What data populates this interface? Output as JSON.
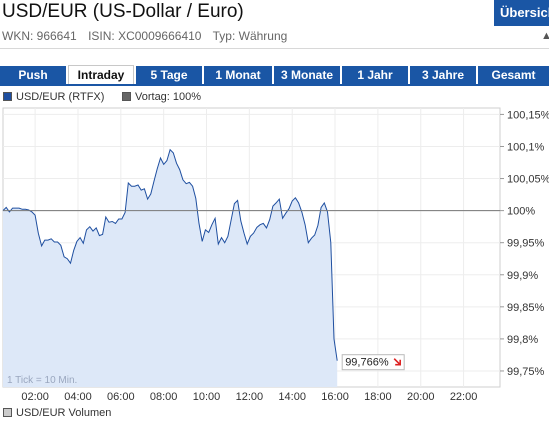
{
  "header": {
    "title": "USD/EUR (US-Dollar / Euro)",
    "overview_label": "Übersicht",
    "wkn": "WKN: 966641",
    "isin": "ISIN: XC0009666410",
    "typ": "Typ: Währung"
  },
  "tabs": [
    {
      "label": "Push",
      "active": false
    },
    {
      "label": "Intraday",
      "active": true
    },
    {
      "label": "5 Tage",
      "active": false
    },
    {
      "label": "1 Monat",
      "active": false
    },
    {
      "label": "3 Monate",
      "active": false
    },
    {
      "label": "1 Jahr",
      "active": false
    },
    {
      "label": "3 Jahre",
      "active": false
    },
    {
      "label": "Gesamt",
      "active": false
    }
  ],
  "legend": {
    "series_label": "USD/EUR (RTFX)",
    "prev_label": "Vortag: 100%",
    "volume_label": "USD/EUR Volumen",
    "tick_note": "1 Tick = 10 Min."
  },
  "colors": {
    "accent": "#1a56a5",
    "series_line": "#1f4fa0",
    "series_fill": "#dde8f8",
    "prev_swatch": "#666666",
    "volume_swatch": "#cccccc",
    "last_arrow": "#dd2222"
  },
  "chart_data": {
    "type": "area",
    "x_unit": "hour",
    "xlim": [
      0.5,
      23.7
    ],
    "ylim": [
      99.725,
      100.16
    ],
    "x_ticks": [
      "02:00",
      "04:00",
      "06:00",
      "08:00",
      "10:00",
      "12:00",
      "14:00",
      "16:00",
      "18:00",
      "20:00",
      "22:00"
    ],
    "y_ticks": [
      "100,15%",
      "100,1%",
      "100,05%",
      "100%",
      "99,95%",
      "99,9%",
      "99,85%",
      "99,8%",
      "99,75%"
    ],
    "reference_value": 100.0,
    "last_label": "99,766%",
    "last_direction": "down",
    "series": [
      {
        "name": "USD/EUR (RTFX)",
        "x": [
          0.5,
          0.65,
          0.8,
          0.95,
          1.1,
          1.25,
          1.4,
          1.55,
          1.7,
          1.85,
          2.0,
          2.15,
          2.3,
          2.45,
          2.6,
          2.75,
          2.9,
          3.05,
          3.2,
          3.35,
          3.5,
          3.65,
          3.8,
          3.95,
          4.1,
          4.25,
          4.4,
          4.55,
          4.7,
          4.85,
          5.0,
          5.15,
          5.3,
          5.45,
          5.6,
          5.75,
          5.9,
          6.05,
          6.2,
          6.35,
          6.5,
          6.65,
          6.8,
          6.95,
          7.1,
          7.25,
          7.4,
          7.55,
          7.7,
          7.85,
          8.0,
          8.15,
          8.3,
          8.45,
          8.6,
          8.75,
          8.9,
          9.05,
          9.2,
          9.35,
          9.5,
          9.65,
          9.8,
          9.95,
          10.1,
          10.25,
          10.4,
          10.55,
          10.7,
          10.85,
          11.0,
          11.15,
          11.3,
          11.45,
          11.6,
          11.75,
          11.9,
          12.05,
          12.2,
          12.35,
          12.5,
          12.65,
          12.8,
          12.95,
          13.1,
          13.25,
          13.4,
          13.55,
          13.7,
          13.85,
          14.0,
          14.15,
          14.3,
          14.45,
          14.6,
          14.75,
          14.9,
          15.05,
          15.2,
          15.35,
          15.5,
          15.65,
          15.8,
          15.95,
          16.1
        ],
        "values": [
          100.0,
          100.005,
          99.998,
          100.004,
          100.004,
          100.004,
          100.002,
          100.002,
          100.001,
          99.998,
          99.993,
          99.965,
          99.945,
          99.954,
          99.954,
          99.956,
          99.951,
          99.951,
          99.946,
          99.928,
          99.925,
          99.918,
          99.938,
          99.952,
          99.958,
          99.949,
          99.97,
          99.975,
          99.968,
          99.973,
          99.961,
          99.963,
          99.99,
          99.982,
          99.983,
          99.98,
          99.987,
          99.987,
          99.997,
          100.043,
          100.038,
          100.038,
          100.04,
          100.032,
          100.034,
          100.018,
          100.026,
          100.046,
          100.065,
          100.082,
          100.072,
          100.078,
          100.095,
          100.09,
          100.074,
          100.064,
          100.048,
          100.042,
          100.044,
          100.038,
          100.019,
          99.98,
          99.952,
          99.97,
          99.966,
          99.978,
          99.988,
          99.948,
          99.958,
          99.95,
          99.96,
          99.985,
          100.011,
          100.016,
          99.984,
          99.965,
          99.948,
          99.96,
          99.965,
          99.974,
          99.978,
          99.98,
          99.973,
          99.986,
          100.007,
          100.012,
          100.018,
          99.988,
          99.996,
          100.003,
          100.015,
          100.02,
          100.012,
          99.998,
          99.978,
          99.95,
          99.957,
          99.962,
          99.977,
          100.005,
          100.012,
          99.998,
          99.95,
          99.8,
          99.766
        ]
      }
    ]
  }
}
